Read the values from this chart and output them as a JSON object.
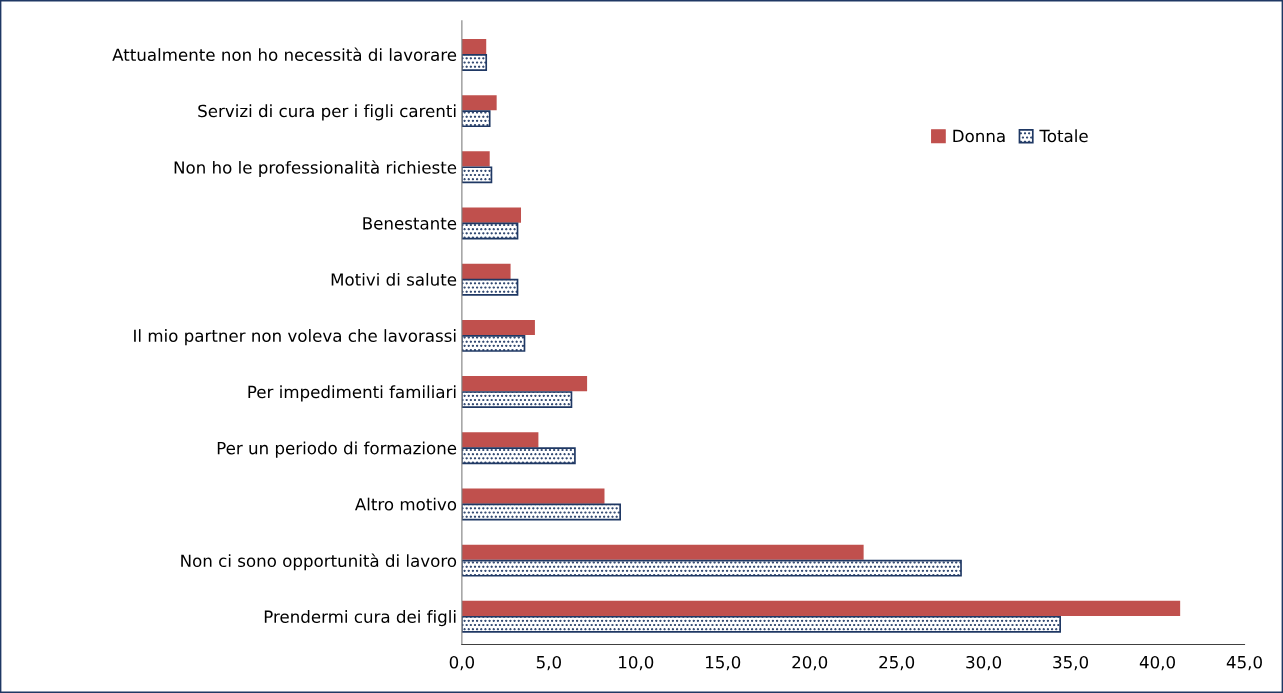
{
  "chart_data": {
    "type": "bar",
    "orientation": "horizontal",
    "categories": [
      "Attualmente non ho necessità di lavorare",
      "Servizi di cura per i figli carenti",
      "Non ho le professionalità richieste",
      "Benestante",
      "Motivi di salute",
      "Il mio partner non voleva che lavorassi",
      "Per impedimenti familiari",
      "Per un periodo di formazione",
      "Altro motivo",
      "Non ci sono opportunità di lavoro",
      "Prendermi cura dei figli"
    ],
    "series": [
      {
        "name": "Donna",
        "color": "#c0504d",
        "values": [
          1.4,
          2.0,
          1.6,
          3.4,
          2.8,
          4.2,
          7.2,
          4.4,
          8.2,
          23.1,
          41.3
        ]
      },
      {
        "name": "Totale",
        "color": "#1f3864",
        "values": [
          1.4,
          1.6,
          1.7,
          3.2,
          3.2,
          3.6,
          6.3,
          6.5,
          9.1,
          28.7,
          34.4
        ]
      }
    ],
    "xlim": [
      0,
      45
    ],
    "xticks": [
      {
        "value": 0,
        "label": "0,0"
      },
      {
        "value": 5,
        "label": "5,0"
      },
      {
        "value": 10,
        "label": "10,0"
      },
      {
        "value": 15,
        "label": "15,0"
      },
      {
        "value": 20,
        "label": "20,0"
      },
      {
        "value": 25,
        "label": "25,0"
      },
      {
        "value": 30,
        "label": "30,0"
      },
      {
        "value": 35,
        "label": "35,0"
      },
      {
        "value": 40,
        "label": "40,0"
      },
      {
        "value": 45,
        "label": "45,0"
      }
    ],
    "grid": false,
    "legend": "top right"
  }
}
